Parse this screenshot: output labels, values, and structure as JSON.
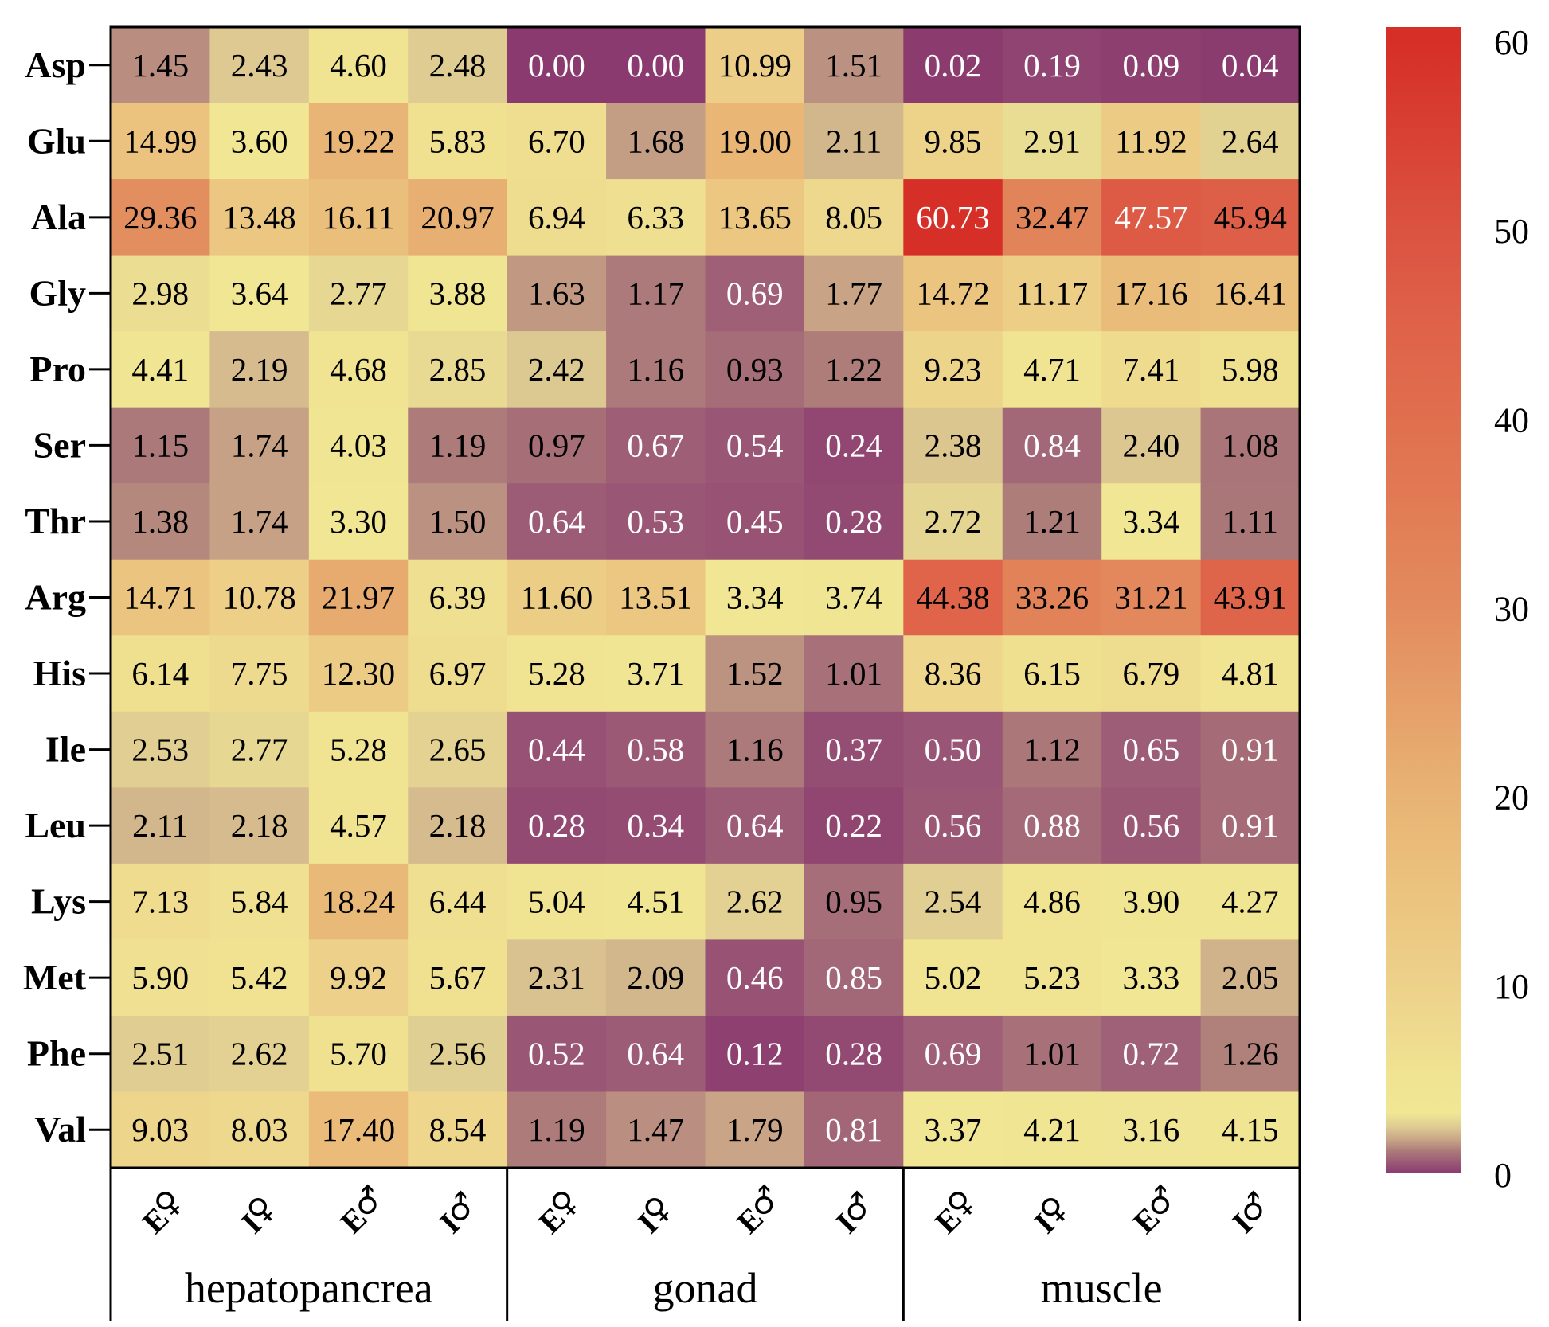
{
  "chart_data": {
    "type": "heatmap",
    "title": "",
    "rows": [
      "Asp",
      "Glu",
      "Ala",
      "Gly",
      "Pro",
      "Ser",
      "Thr",
      "Arg",
      "His",
      "Ile",
      "Leu",
      "Lys",
      "Met",
      "Phe",
      "Val"
    ],
    "columns": [
      {
        "prefix": "E",
        "sex": "♀"
      },
      {
        "prefix": "I",
        "sex": "♀"
      },
      {
        "prefix": "E",
        "sex": "♂"
      },
      {
        "prefix": "I",
        "sex": "♂"
      },
      {
        "prefix": "E",
        "sex": "♀"
      },
      {
        "prefix": "I",
        "sex": "♀"
      },
      {
        "prefix": "E",
        "sex": "♂"
      },
      {
        "prefix": "I",
        "sex": "♂"
      },
      {
        "prefix": "E",
        "sex": "♀"
      },
      {
        "prefix": "I",
        "sex": "♀"
      },
      {
        "prefix": "E",
        "sex": "♂"
      },
      {
        "prefix": "I",
        "sex": "♂"
      }
    ],
    "groups": [
      {
        "label": "hepatopancrea",
        "span": 4
      },
      {
        "label": "gonad",
        "span": 4
      },
      {
        "label": "muscle",
        "span": 4
      }
    ],
    "values": [
      [
        "1.45",
        "2.43",
        "4.60",
        "2.48",
        "0.00",
        "0.00",
        "10.99",
        "1.51",
        "0.02",
        "0.19",
        "0.09",
        "0.04"
      ],
      [
        "14.99",
        "3.60",
        "19.22",
        "5.83",
        "6.70",
        "1.68",
        "19.00",
        "2.11",
        "9.85",
        "2.91",
        "11.92",
        "2.64"
      ],
      [
        "29.36",
        "13.48",
        "16.11",
        "20.97",
        "6.94",
        "6.33",
        "13.65",
        "8.05",
        "60.73",
        "32.47",
        "47.57",
        "45.94"
      ],
      [
        "2.98",
        "3.64",
        "2.77",
        "3.88",
        "1.63",
        "1.17",
        "0.69",
        "1.77",
        "14.72",
        "11.17",
        "17.16",
        "16.41"
      ],
      [
        "4.41",
        "2.19",
        "4.68",
        "2.85",
        "2.42",
        "1.16",
        "0.93",
        "1.22",
        "9.23",
        "4.71",
        "7.41",
        "5.98"
      ],
      [
        "1.15",
        "1.74",
        "4.03",
        "1.19",
        "0.97",
        "0.67",
        "0.54",
        "0.24",
        "2.38",
        "0.84",
        "2.40",
        "1.08"
      ],
      [
        "1.38",
        "1.74",
        "3.30",
        "1.50",
        "0.64",
        "0.53",
        "0.45",
        "0.28",
        "2.72",
        "1.21",
        "3.34",
        "1.11"
      ],
      [
        "14.71",
        "10.78",
        "21.97",
        "6.39",
        "11.60",
        "13.51",
        "3.34",
        "3.74",
        "44.38",
        "33.26",
        "31.21",
        "43.91"
      ],
      [
        "6.14",
        "7.75",
        "12.30",
        "6.97",
        "5.28",
        "3.71",
        "1.52",
        "1.01",
        "8.36",
        "6.15",
        "6.79",
        "4.81"
      ],
      [
        "2.53",
        "2.77",
        "5.28",
        "2.65",
        "0.44",
        "0.58",
        "1.16",
        "0.37",
        "0.50",
        "1.12",
        "0.65",
        "0.91"
      ],
      [
        "2.11",
        "2.18",
        "4.57",
        "2.18",
        "0.28",
        "0.34",
        "0.64",
        "0.22",
        "0.56",
        "0.88",
        "0.56",
        "0.91"
      ],
      [
        "7.13",
        "5.84",
        "18.24",
        "6.44",
        "5.04",
        "4.51",
        "2.62",
        "0.95",
        "2.54",
        "4.86",
        "3.90",
        "4.27"
      ],
      [
        "5.90",
        "5.42",
        "9.92",
        "5.67",
        "2.31",
        "2.09",
        "0.46",
        "0.85",
        "5.02",
        "5.23",
        "3.33",
        "2.05"
      ],
      [
        "2.51",
        "2.62",
        "5.70",
        "2.56",
        "0.52",
        "0.64",
        "0.12",
        "0.28",
        "0.69",
        "1.01",
        "0.72",
        "1.26"
      ],
      [
        "9.03",
        "8.03",
        "17.40",
        "8.54",
        "1.19",
        "1.47",
        "1.79",
        "0.81",
        "3.37",
        "4.21",
        "3.16",
        "4.15"
      ]
    ],
    "white_text_cells": [
      [
        0,
        4
      ],
      [
        0,
        5
      ],
      [
        0,
        8
      ],
      [
        0,
        9
      ],
      [
        0,
        10
      ],
      [
        0,
        11
      ],
      [
        2,
        8
      ],
      [
        2,
        10
      ],
      [
        3,
        6
      ],
      [
        5,
        5
      ],
      [
        5,
        6
      ],
      [
        5,
        7
      ],
      [
        5,
        9
      ],
      [
        6,
        4
      ],
      [
        6,
        5
      ],
      [
        6,
        6
      ],
      [
        6,
        7
      ],
      [
        9,
        4
      ],
      [
        9,
        5
      ],
      [
        9,
        7
      ],
      [
        9,
        8
      ],
      [
        9,
        10
      ],
      [
        9,
        11
      ],
      [
        10,
        4
      ],
      [
        10,
        5
      ],
      [
        10,
        6
      ],
      [
        10,
        7
      ],
      [
        10,
        8
      ],
      [
        10,
        9
      ],
      [
        10,
        10
      ],
      [
        10,
        11
      ],
      [
        12,
        6
      ],
      [
        12,
        7
      ],
      [
        13,
        4
      ],
      [
        13,
        5
      ],
      [
        13,
        6
      ],
      [
        13,
        7
      ],
      [
        13,
        8
      ],
      [
        13,
        10
      ],
      [
        14,
        7
      ]
    ],
    "colorbar": {
      "range": [
        0,
        60
      ],
      "ticks": [
        "0",
        "10",
        "20",
        "30",
        "40",
        "50",
        "60"
      ],
      "stops": [
        {
          "value": 0,
          "color": "#8a3a6e"
        },
        {
          "value": 0.6,
          "color": "#9c5a76"
        },
        {
          "value": 1.2,
          "color": "#ad7c7a"
        },
        {
          "value": 1.8,
          "color": "#c9a587"
        },
        {
          "value": 2.5,
          "color": "#dfcd92"
        },
        {
          "value": 3.2,
          "color": "#f0e694"
        },
        {
          "value": 5,
          "color": "#f0e492"
        },
        {
          "value": 10,
          "color": "#edd18a"
        },
        {
          "value": 15,
          "color": "#ebc37e"
        },
        {
          "value": 20,
          "color": "#e8b374"
        },
        {
          "value": 30,
          "color": "#e38b5e"
        },
        {
          "value": 40,
          "color": "#e06f4e"
        },
        {
          "value": 45,
          "color": "#df6249"
        },
        {
          "value": 50,
          "color": "#db5341"
        },
        {
          "value": 60,
          "color": "#d62f27"
        }
      ]
    },
    "text_colors": {
      "dark": "#000000",
      "light": "#ffffff"
    },
    "frame_color": "#000000"
  }
}
